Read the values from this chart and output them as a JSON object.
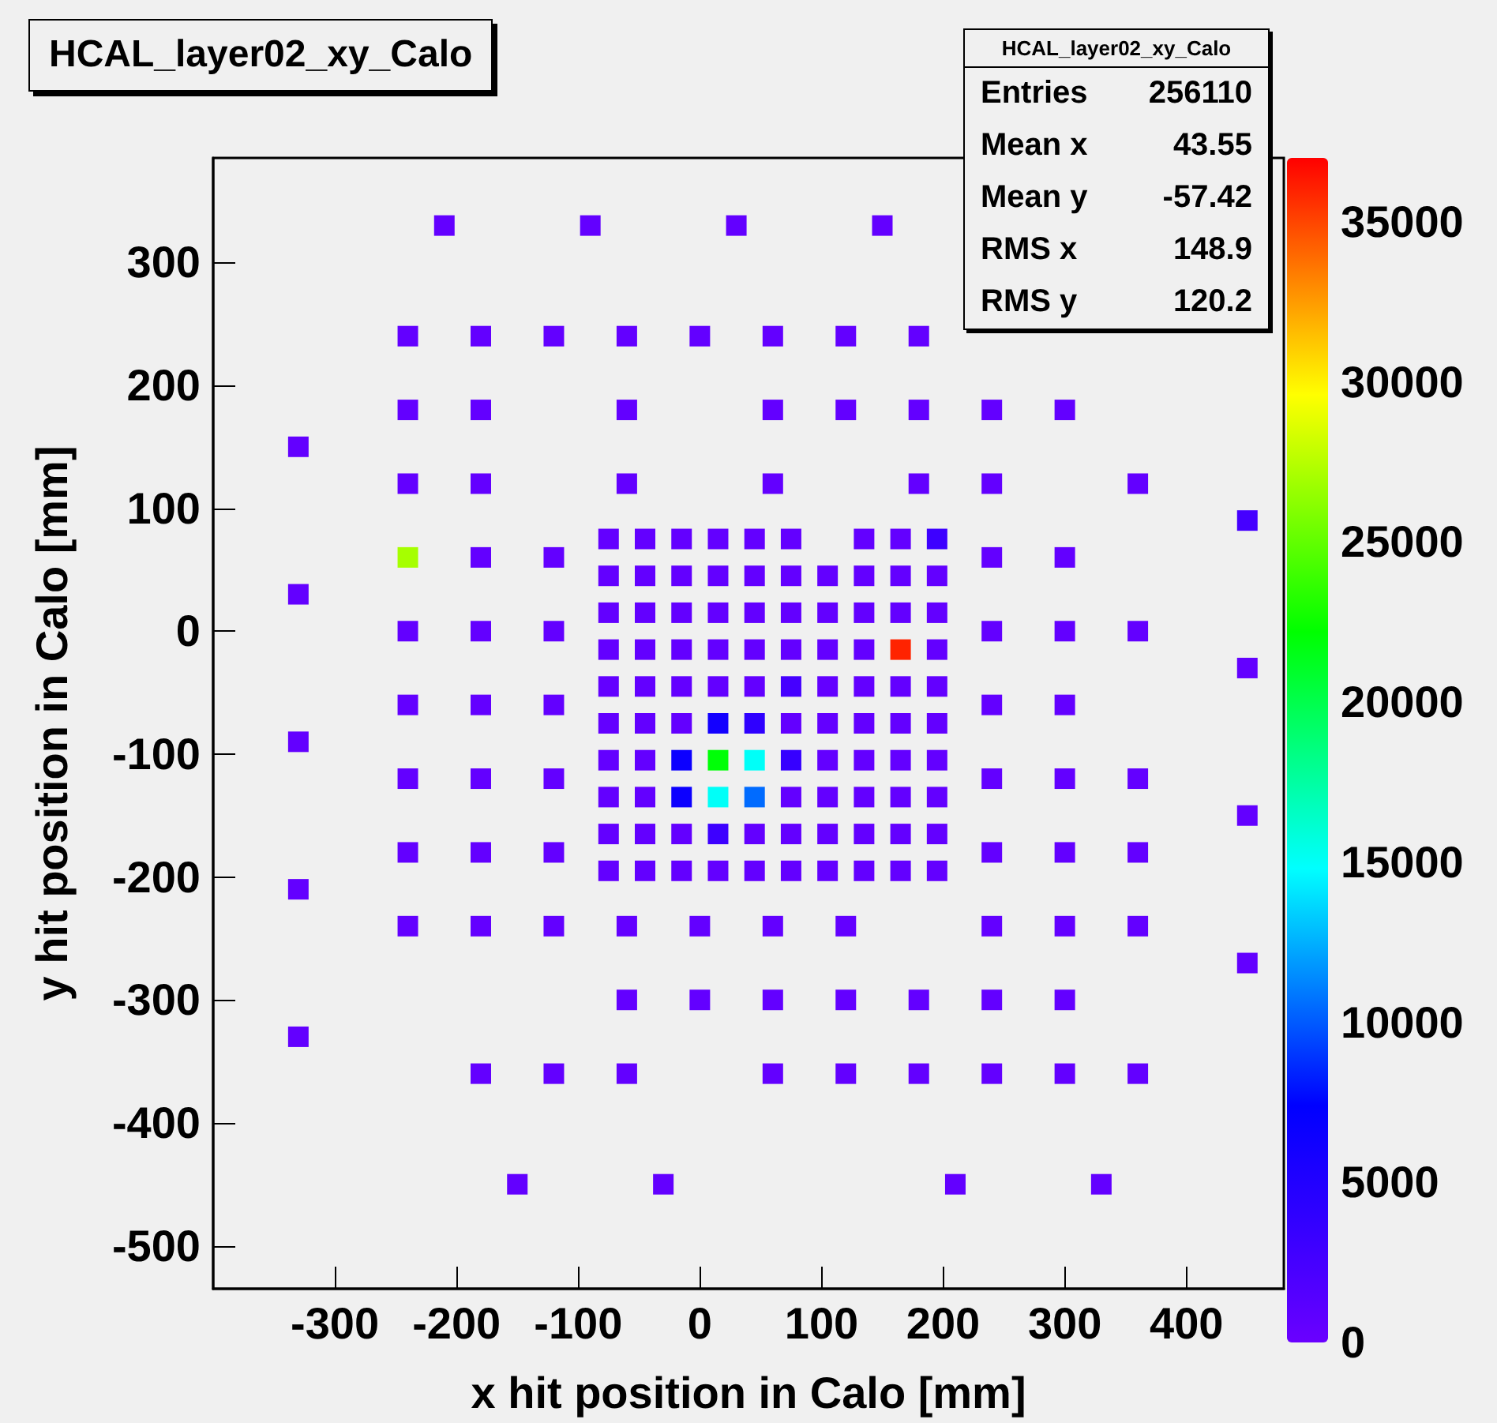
{
  "chart_data": {
    "type": "scatter",
    "title": "HCAL_layer02_xy_Calo",
    "xlabel": "x hit position in Calo [mm]",
    "ylabel": "y hit position in Calo [mm]",
    "annotations": [
      "HCAL_layer02_xy_Calo",
      "Entries 256110",
      "Mean x 43.55",
      "Mean y -57.42",
      "RMS x 148.9",
      "RMS y 120.2"
    ],
    "xlim": [
      -400,
      480
    ],
    "ylim": [
      -535,
      385
    ],
    "xticks": [
      -300,
      -200,
      -100,
      0,
      100,
      200,
      300,
      400
    ],
    "yticks": [
      -500,
      -400,
      -300,
      -200,
      -100,
      0,
      100,
      200,
      300
    ],
    "clim": [
      0,
      37000
    ],
    "cticks": [
      0,
      5000,
      10000,
      15000,
      20000,
      25000,
      30000,
      35000
    ],
    "marker": "square",
    "grid": false,
    "series": [
      {
        "x": [
          -210,
          -90,
          30,
          150
        ],
        "values": [
          330,
          330,
          330,
          330
        ],
        "cvalues": [
          500,
          500,
          500,
          500
        ]
      },
      {
        "x": [
          -240,
          -180,
          -120,
          -60,
          0,
          60,
          120,
          180
        ],
        "values": [
          240,
          240,
          240,
          240,
          240,
          240,
          240,
          240
        ],
        "cvalues": [
          500,
          500,
          500,
          500,
          500,
          500,
          500,
          500
        ]
      },
      {
        "x": [
          -240,
          -180,
          -60,
          60,
          120,
          180,
          240,
          300
        ],
        "values": [
          180,
          180,
          180,
          180,
          180,
          180,
          180,
          180
        ],
        "cvalues": [
          500,
          500,
          500,
          500,
          500,
          500,
          500,
          500
        ]
      },
      {
        "x": [
          -330
        ],
        "values": [
          150
        ],
        "cvalues": [
          500
        ]
      },
      {
        "x": [
          -240,
          -180,
          -60,
          60,
          180,
          240,
          360
        ],
        "values": [
          120,
          120,
          120,
          120,
          120,
          120,
          120
        ],
        "cvalues": [
          500,
          500,
          500,
          500,
          500,
          500,
          500
        ]
      },
      {
        "x": [
          -75,
          -45,
          -15,
          15,
          45,
          75,
          135,
          165
        ],
        "values": [
          75,
          75,
          75,
          75,
          75,
          75,
          75,
          75
        ],
        "cvalues": [
          500,
          500,
          500,
          500,
          500,
          500,
          500,
          500
        ]
      },
      {
        "x": [
          -180,
          -120,
          240,
          300
        ],
        "values": [
          60,
          60,
          60,
          60
        ],
        "cvalues": [
          500,
          500,
          500,
          500
        ]
      },
      {
        "x": [
          -75,
          -45,
          -15,
          15,
          45,
          75,
          105,
          135,
          165,
          195
        ],
        "values": [
          45,
          45,
          45,
          45,
          45,
          45,
          45,
          45,
          45,
          45
        ],
        "cvalues": [
          500,
          500,
          500,
          500,
          500,
          500,
          500,
          500,
          500,
          500
        ]
      },
      {
        "x": [
          -330
        ],
        "values": [
          30
        ],
        "cvalues": [
          500
        ]
      },
      {
        "x": [
          -75,
          -45,
          -15,
          15,
          45,
          75,
          105,
          135,
          165,
          195
        ],
        "values": [
          15,
          15,
          15,
          15,
          15,
          15,
          15,
          15,
          15,
          15
        ],
        "cvalues": [
          500,
          500,
          500,
          500,
          500,
          500,
          500,
          500,
          500,
          500
        ]
      },
      {
        "x": [
          -240,
          -180,
          -120,
          240,
          300,
          360
        ],
        "values": [
          0,
          0,
          0,
          0,
          0,
          0
        ],
        "cvalues": [
          500,
          500,
          500,
          500,
          500,
          500
        ]
      },
      {
        "x": [
          -75,
          -45,
          -15,
          15,
          45,
          75,
          105,
          135,
          195
        ],
        "values": [
          -15,
          -15,
          -15,
          -15,
          -15,
          -15,
          -15,
          -15,
          -15
        ],
        "cvalues": [
          500,
          500,
          500,
          500,
          500,
          500,
          500,
          500,
          500
        ]
      },
      {
        "x": [
          450
        ],
        "values": [
          -30
        ],
        "cvalues": [
          500
        ]
      },
      {
        "x": [
          -75,
          -45,
          -15,
          15,
          45,
          105,
          135,
          165,
          195
        ],
        "values": [
          -45,
          -45,
          -45,
          -45,
          -45,
          -45,
          -45,
          -45,
          -45
        ],
        "cvalues": [
          500,
          500,
          500,
          500,
          500,
          500,
          500,
          500,
          500
        ]
      },
      {
        "x": [
          -240,
          -180,
          -120,
          240,
          300
        ],
        "values": [
          -60,
          -60,
          -60,
          -60,
          -60
        ],
        "cvalues": [
          500,
          500,
          500,
          500,
          500
        ]
      },
      {
        "x": [
          -75,
          -45,
          -15,
          75,
          105,
          135,
          165,
          195
        ],
        "values": [
          -75,
          -75,
          -75,
          -75,
          -75,
          -75,
          -75,
          -75
        ],
        "cvalues": [
          500,
          500,
          500,
          500,
          500,
          500,
          500,
          500
        ]
      },
      {
        "x": [
          -330
        ],
        "values": [
          -90
        ],
        "cvalues": [
          500
        ]
      },
      {
        "x": [
          -75,
          -45,
          105,
          135,
          165,
          195
        ],
        "values": [
          -105,
          -105,
          -105,
          -105,
          -105,
          -105
        ],
        "cvalues": [
          500,
          500,
          500,
          500,
          500,
          500
        ]
      },
      {
        "x": [
          -240,
          -180,
          -120,
          240,
          300,
          360
        ],
        "values": [
          -120,
          -120,
          -120,
          -120,
          -120,
          -120
        ],
        "cvalues": [
          500,
          500,
          500,
          500,
          500,
          500
        ]
      },
      {
        "x": [
          -75,
          -45,
          75,
          105,
          135,
          165,
          195
        ],
        "values": [
          -135,
          -135,
          -135,
          -135,
          -135,
          -135,
          -135
        ],
        "cvalues": [
          500,
          500,
          500,
          500,
          500,
          500,
          500
        ]
      },
      {
        "x": [
          450
        ],
        "values": [
          -150
        ],
        "cvalues": [
          500
        ]
      },
      {
        "x": [
          -75,
          -45,
          -15,
          45,
          75,
          105,
          135,
          165,
          195
        ],
        "values": [
          -165,
          -165,
          -165,
          -165,
          -165,
          -165,
          -165,
          -165,
          -165
        ],
        "cvalues": [
          500,
          500,
          500,
          500,
          500,
          500,
          500,
          500,
          500
        ]
      },
      {
        "x": [
          -240,
          -180,
          -120,
          240,
          300,
          360
        ],
        "values": [
          -180,
          -180,
          -180,
          -180,
          -180,
          -180
        ],
        "cvalues": [
          500,
          500,
          500,
          500,
          500,
          500
        ]
      },
      {
        "x": [
          -75,
          -45,
          -15,
          15,
          45,
          75,
          105,
          135,
          165,
          195
        ],
        "values": [
          -195,
          -195,
          -195,
          -195,
          -195,
          -195,
          -195,
          -195,
          -195,
          -195
        ],
        "cvalues": [
          500,
          500,
          500,
          500,
          500,
          500,
          500,
          500,
          500,
          500
        ]
      },
      {
        "x": [
          -330
        ],
        "values": [
          -210
        ],
        "cvalues": [
          500
        ]
      },
      {
        "x": [
          -240,
          -180,
          -120,
          -60,
          0,
          60,
          120,
          240,
          300,
          360
        ],
        "values": [
          -240,
          -240,
          -240,
          -240,
          -240,
          -240,
          -240,
          -240,
          -240,
          -240
        ],
        "cvalues": [
          500,
          500,
          500,
          500,
          500,
          500,
          500,
          500,
          500,
          500
        ]
      },
      {
        "x": [
          450
        ],
        "values": [
          -270
        ],
        "cvalues": [
          500
        ]
      },
      {
        "x": [
          -60,
          0,
          60,
          120,
          180,
          240,
          300
        ],
        "values": [
          -300,
          -300,
          -300,
          -300,
          -300,
          -300,
          -300
        ],
        "cvalues": [
          500,
          500,
          500,
          500,
          500,
          500,
          500
        ]
      },
      {
        "x": [
          -330
        ],
        "values": [
          -330
        ],
        "cvalues": [
          500
        ]
      },
      {
        "x": [
          -180,
          -120,
          -60,
          60,
          120,
          180,
          240,
          300,
          360
        ],
        "values": [
          -360,
          -360,
          -360,
          -360,
          -360,
          -360,
          -360,
          -360,
          -360
        ],
        "cvalues": [
          500,
          500,
          500,
          500,
          500,
          500,
          500,
          500,
          500
        ]
      },
      {
        "x": [
          -150,
          -30,
          210,
          330
        ],
        "values": [
          -450,
          -450,
          -450,
          -450
        ],
        "cvalues": [
          500,
          500,
          500,
          500
        ]
      },
      {
        "x": [
          450,
          75
        ],
        "values": [
          90,
          -45
        ],
        "cvalues": [
          2500,
          2500
        ]
      },
      {
        "x": [
          195,
          15
        ],
        "values": [
          75,
          -165
        ],
        "cvalues": [
          3000,
          3000
        ]
      },
      {
        "x": [
          75
        ],
        "values": [
          -105
        ],
        "cvalues": [
          3500
        ]
      },
      {
        "x": [
          45
        ],
        "values": [
          -75
        ],
        "cvalues": [
          4000
        ]
      },
      {
        "x": [
          15
        ],
        "values": [
          -75
        ],
        "cvalues": [
          6000
        ]
      },
      {
        "x": [
          -15,
          -15
        ],
        "values": [
          -105,
          -135
        ],
        "cvalues": [
          6500,
          6500
        ]
      },
      {
        "x": [
          45
        ],
        "values": [
          -135
        ],
        "cvalues": [
          10500
        ]
      },
      {
        "x": [
          45,
          15
        ],
        "values": [
          -105,
          -135
        ],
        "cvalues": [
          15000,
          15000
        ]
      },
      {
        "x": [
          15
        ],
        "values": [
          -105
        ],
        "cvalues": [
          22000
        ]
      },
      {
        "x": [
          -240
        ],
        "values": [
          60
        ],
        "cvalues": [
          27000
        ]
      },
      {
        "x": [
          165
        ],
        "values": [
          -15
        ],
        "cvalues": [
          36000
        ]
      }
    ]
  }
}
